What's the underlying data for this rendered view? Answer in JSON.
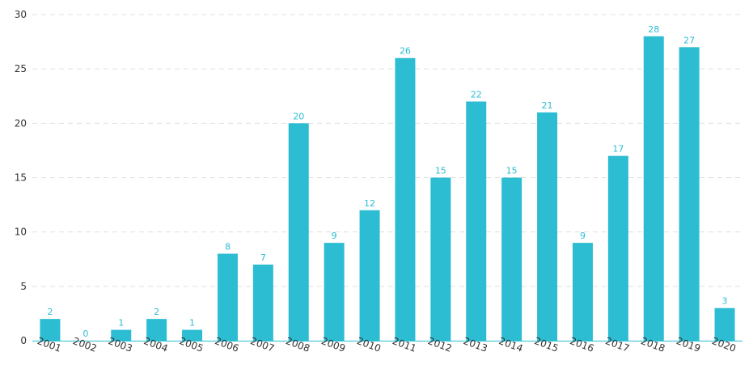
{
  "chart_data": {
    "type": "bar",
    "title": "",
    "xlabel": "",
    "ylabel": "",
    "ylim": [
      0,
      30
    ],
    "yticks": [
      0,
      5,
      10,
      15,
      20,
      25,
      30
    ],
    "grid": true,
    "legend": "none",
    "bar_color": "#2cbdd3",
    "label_color": "#2cbdd3",
    "categories": [
      "2001",
      "2002",
      "2003",
      "2004",
      "2005",
      "2006",
      "2007",
      "2008",
      "2009",
      "2010",
      "2011",
      "2012",
      "2013",
      "2014",
      "2015",
      "2016",
      "2017",
      "2018",
      "2019",
      "2020"
    ],
    "values": [
      2,
      0,
      1,
      2,
      1,
      8,
      7,
      20,
      9,
      12,
      26,
      15,
      22,
      15,
      21,
      9,
      17,
      28,
      27,
      3
    ]
  }
}
